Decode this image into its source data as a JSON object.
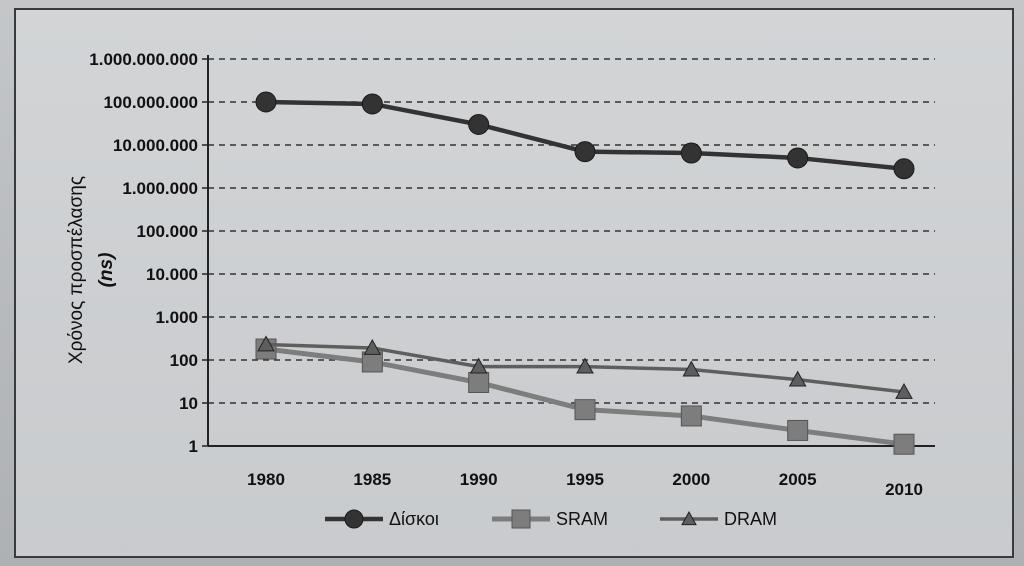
{
  "chart_data": {
    "type": "line",
    "title": "",
    "xlabel": "",
    "ylabel": "Χρόνος προσπέλασης",
    "ylabel_unit": "(ns)",
    "yscale": "log",
    "ylim": [
      1,
      1000000000
    ],
    "y_tick_values": [
      1,
      10,
      100,
      1000,
      10000,
      100000,
      1000000,
      10000000,
      100000000,
      1000000000
    ],
    "y_tick_labels": [
      "1",
      "10",
      "100",
      "1.000",
      "10.000",
      "100.000",
      "1.000.000",
      "10.000.000",
      "100.000.000",
      "1.000.000.000"
    ],
    "x": [
      "1980",
      "1985",
      "1990",
      "1995",
      "2000",
      "2005",
      "2010"
    ],
    "grid": "horizontal dashed",
    "legend_position": "bottom",
    "series": [
      {
        "name": "Δίσκοι",
        "color": "#333333",
        "marker": "circle",
        "values": [
          100000000,
          90000000,
          30000000,
          7000000,
          6500000,
          5000000,
          2800000
        ]
      },
      {
        "name": "SRAM",
        "color": "#7d7d7d",
        "marker": "square",
        "values": [
          180,
          90,
          30,
          7,
          5,
          2.3,
          1.1
        ]
      },
      {
        "name": "DRAM",
        "color": "#5e5e5e",
        "marker": "triangle",
        "values": [
          230,
          190,
          70,
          70,
          60,
          35,
          18
        ]
      }
    ]
  }
}
